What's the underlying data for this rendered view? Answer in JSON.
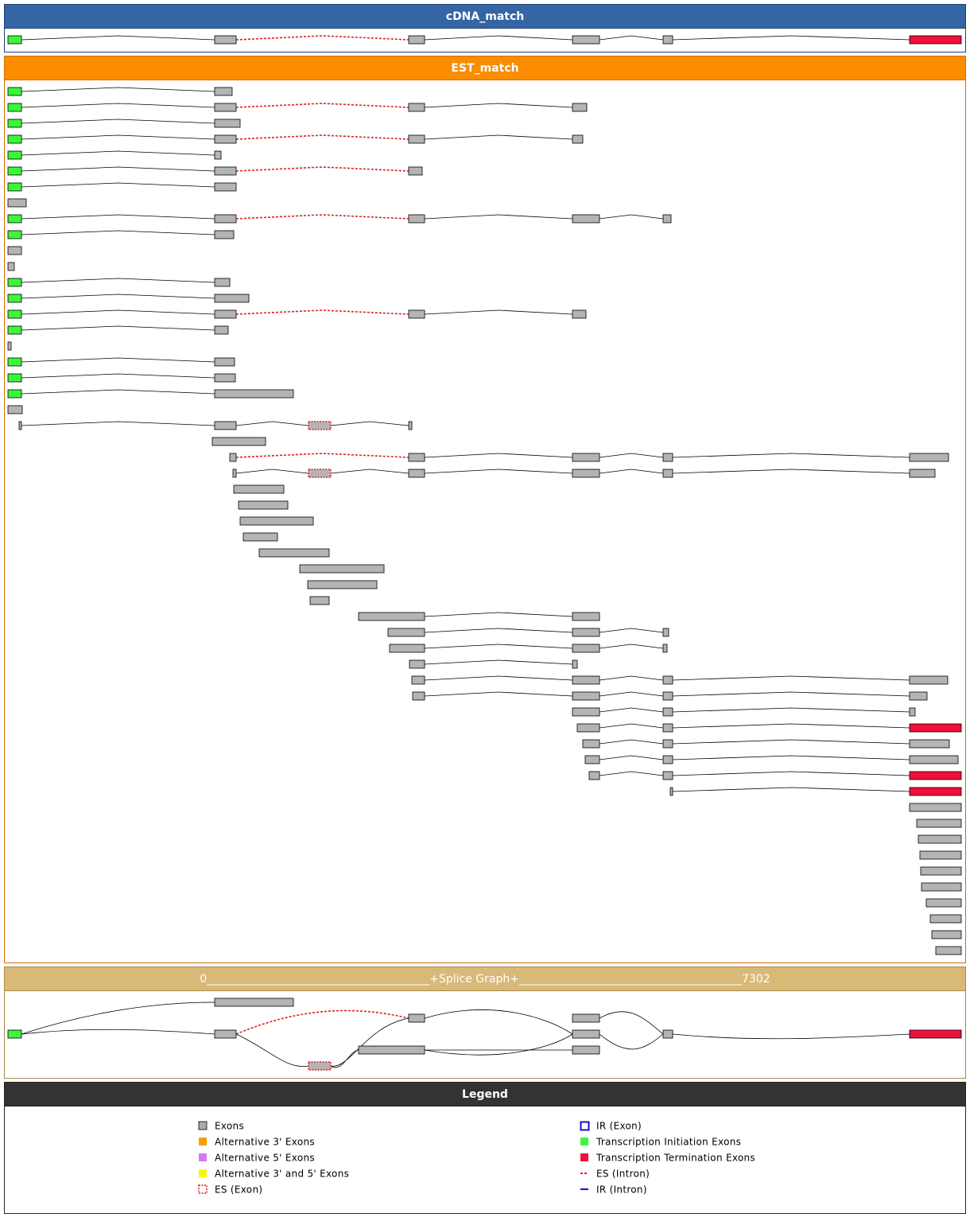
{
  "panels": {
    "cdna": {
      "title": "cDNA_match"
    },
    "est": {
      "title": "EST_match"
    },
    "splice": {
      "title": "0________________________________________+Splice Graph+________________________________________7302"
    },
    "legend": {
      "title": "Legend",
      "items": [
        "Exons",
        "Alternative 3' Exons",
        "Alternative 5' Exons",
        "Alternative 3' and 5' Exons",
        "ES (Exon)",
        "IR (Exon)",
        "Transcription Initiation Exons",
        "Transcription Termination Exons",
        "ES (Intron)",
        "IR (Intron)"
      ]
    }
  }
}
